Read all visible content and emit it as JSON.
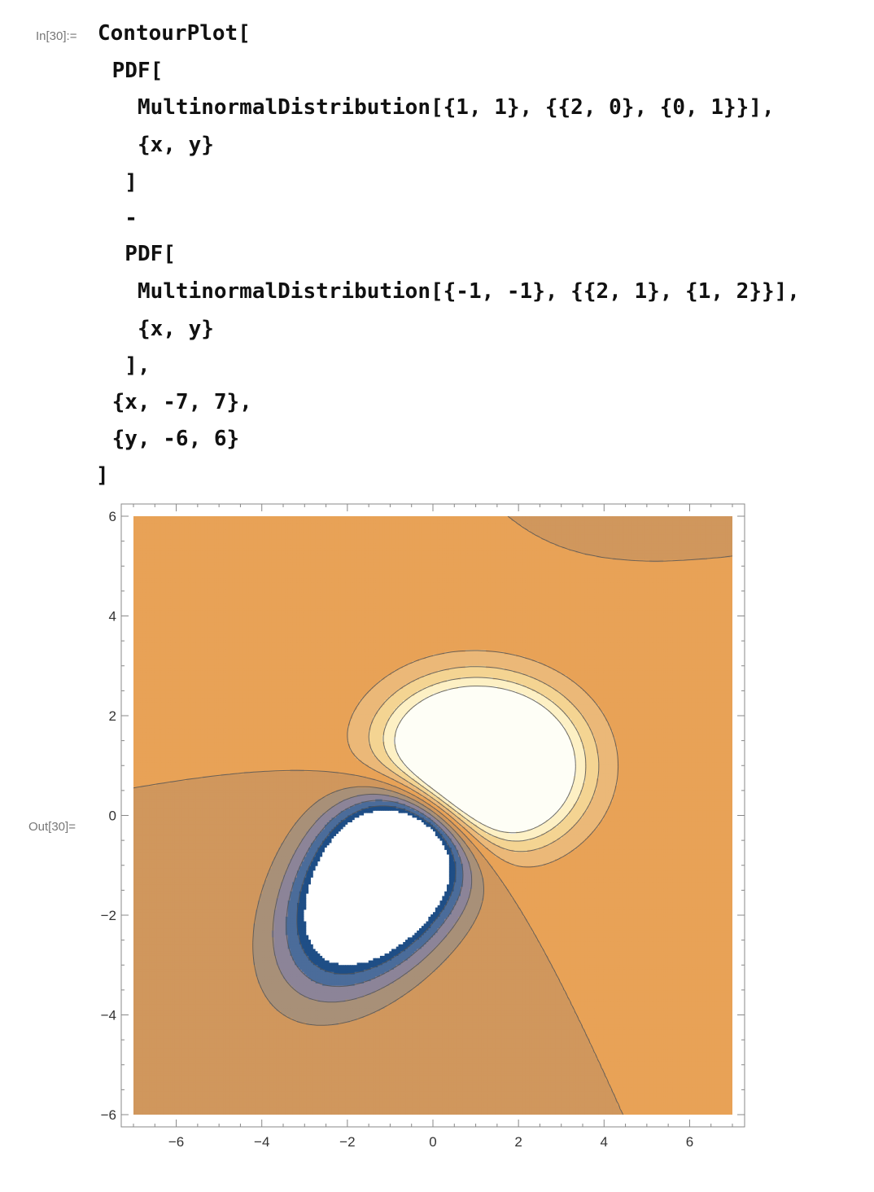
{
  "input": {
    "label": "In[30]:=",
    "lines": [
      "ContourPlot[",
      " PDF[",
      "   MultinormalDistribution[{1, 1}, {{2, 0}, {0, 1}}],",
      "   {x, y}",
      "  ]",
      "  -",
      "  PDF[",
      "   MultinormalDistribution[{-1, -1}, {{2, 1}, {1, 2}}],",
      "   {x, y}",
      "  ],",
      " {x, -7, 7},",
      " {y, -6, 6}",
      "]"
    ]
  },
  "output": {
    "label": "Out[30]="
  },
  "chart_data": {
    "type": "contour",
    "title": "",
    "xlabel": "",
    "ylabel": "",
    "xlim": [
      -7,
      7
    ],
    "ylim": [
      -6,
      6
    ],
    "xticks": [
      "−6",
      "−4",
      "−2",
      "0",
      "2",
      "4",
      "6"
    ],
    "yticks": [
      "−6",
      "−4",
      "−2",
      "0",
      "2",
      "4",
      "6"
    ],
    "colors": {
      "high": "#fefef6",
      "positive_levels": [
        "#fdf0c4",
        "#f4d492",
        "#ebb878",
        "#e8a55c"
      ],
      "background": "#e8a257",
      "low_background": "#d0975d",
      "negative_levels": [
        "#a89078",
        "#8c8498",
        "#4b6c9a",
        "#1f4e86"
      ],
      "low": "#ffffff",
      "contour_line": "#555555",
      "frame": "#888888"
    }
  }
}
